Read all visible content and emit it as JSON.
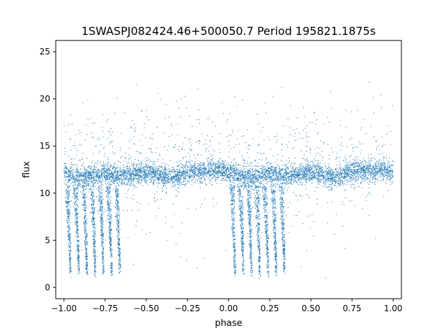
{
  "chart_data": {
    "type": "scatter",
    "title": "1SWASPJ082424.46+500050.7 Period 195821.1875s",
    "xlabel": "phase",
    "ylabel": "flux",
    "xlim": [
      -1.05,
      1.05
    ],
    "ylim": [
      -1.2,
      26.2
    ],
    "x_ticks": [
      -1.0,
      -0.75,
      -0.5,
      -0.25,
      0.0,
      0.25,
      0.5,
      0.75,
      1.0
    ],
    "x_tick_labels": [
      "−1.00",
      "−0.75",
      "−0.50",
      "−0.25",
      "0.00",
      "0.25",
      "0.50",
      "0.75",
      "1.00"
    ],
    "y_ticks": [
      0,
      5,
      10,
      15,
      20,
      25
    ],
    "y_tick_labels": [
      "0",
      "5",
      "10",
      "15",
      "20",
      "25"
    ],
    "grid": false,
    "series": [
      {
        "marker_color": "#1f77b4",
        "description_points": [
          {
            "x": -1.0,
            "y": 12.2
          },
          {
            "x": -0.95,
            "y": 11.8
          },
          {
            "x": -0.9,
            "y": 11.6
          },
          {
            "x": -0.85,
            "y": 11.7
          },
          {
            "x": -0.8,
            "y": 11.9
          },
          {
            "x": -0.75,
            "y": 12.0
          },
          {
            "x": -0.7,
            "y": 11.9
          },
          {
            "x": -0.65,
            "y": 11.8
          },
          {
            "x": -0.6,
            "y": 11.9
          },
          {
            "x": -0.55,
            "y": 12.1
          },
          {
            "x": -0.5,
            "y": 12.2
          },
          {
            "x": -0.45,
            "y": 12.0
          },
          {
            "x": -0.4,
            "y": 11.7
          },
          {
            "x": -0.35,
            "y": 11.6
          },
          {
            "x": -0.3,
            "y": 11.9
          },
          {
            "x": -0.25,
            "y": 12.3
          },
          {
            "x": -0.2,
            "y": 12.4
          },
          {
            "x": -0.15,
            "y": 12.3
          },
          {
            "x": -0.1,
            "y": 12.4
          },
          {
            "x": -0.05,
            "y": 12.5
          },
          {
            "x": 0.0,
            "y": 12.2
          },
          {
            "x": 0.05,
            "y": 11.8
          },
          {
            "x": 0.1,
            "y": 11.6
          },
          {
            "x": 0.15,
            "y": 11.7
          },
          {
            "x": 0.2,
            "y": 11.9
          },
          {
            "x": 0.25,
            "y": 12.0
          },
          {
            "x": 0.3,
            "y": 11.9
          },
          {
            "x": 0.35,
            "y": 11.8
          },
          {
            "x": 0.4,
            "y": 11.9
          },
          {
            "x": 0.45,
            "y": 12.1
          },
          {
            "x": 0.5,
            "y": 12.2
          },
          {
            "x": 0.55,
            "y": 12.0
          },
          {
            "x": 0.6,
            "y": 11.7
          },
          {
            "x": 0.65,
            "y": 11.6
          },
          {
            "x": 0.7,
            "y": 11.9
          },
          {
            "x": 0.75,
            "y": 12.3
          },
          {
            "x": 0.8,
            "y": 12.4
          },
          {
            "x": 0.85,
            "y": 12.3
          },
          {
            "x": 0.9,
            "y": 12.4
          },
          {
            "x": 0.95,
            "y": 12.5
          },
          {
            "x": 1.0,
            "y": 12.2
          }
        ],
        "dip_minimum_points": [
          {
            "x": -0.96,
            "y": 1.2
          },
          {
            "x": -0.91,
            "y": 1.5
          },
          {
            "x": -0.86,
            "y": 1.4
          },
          {
            "x": -0.81,
            "y": 1.3
          },
          {
            "x": -0.76,
            "y": 1.4
          },
          {
            "x": -0.71,
            "y": 1.3
          },
          {
            "x": -0.66,
            "y": 1.5
          },
          {
            "x": 0.04,
            "y": 1.2
          },
          {
            "x": 0.09,
            "y": 1.5
          },
          {
            "x": 0.14,
            "y": 1.4
          },
          {
            "x": 0.19,
            "y": 1.3
          },
          {
            "x": 0.24,
            "y": 1.4
          },
          {
            "x": 0.29,
            "y": 1.3
          },
          {
            "x": 0.34,
            "y": 1.5
          }
        ]
      }
    ]
  }
}
